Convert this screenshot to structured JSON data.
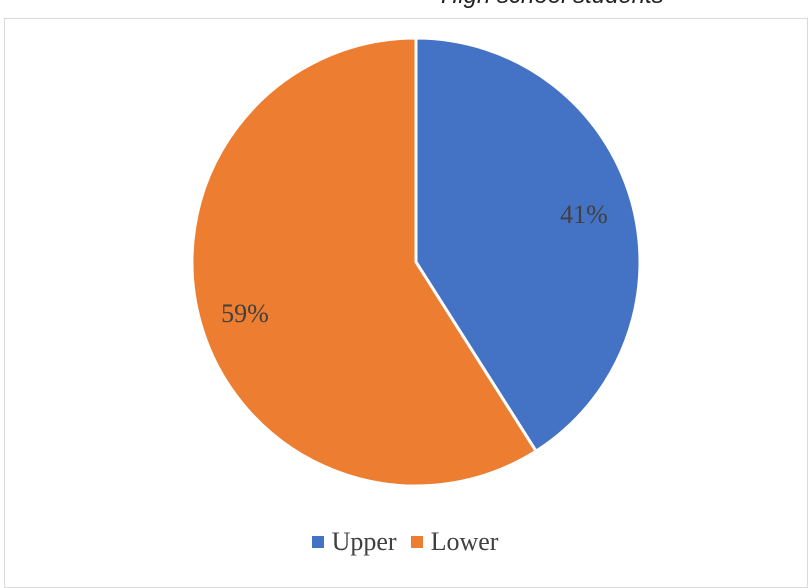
{
  "header": {
    "partial_title": "High school students"
  },
  "chart_data": {
    "type": "pie",
    "categories": [
      "Upper",
      "Lower"
    ],
    "values": [
      41,
      59
    ],
    "data_labels": [
      "41%",
      "59%"
    ],
    "colors": [
      "#4472c4",
      "#ed7d31"
    ],
    "start_angle_deg": 0,
    "direction": "clockwise",
    "legend_position": "bottom",
    "title": "",
    "label_color": "#404040"
  }
}
